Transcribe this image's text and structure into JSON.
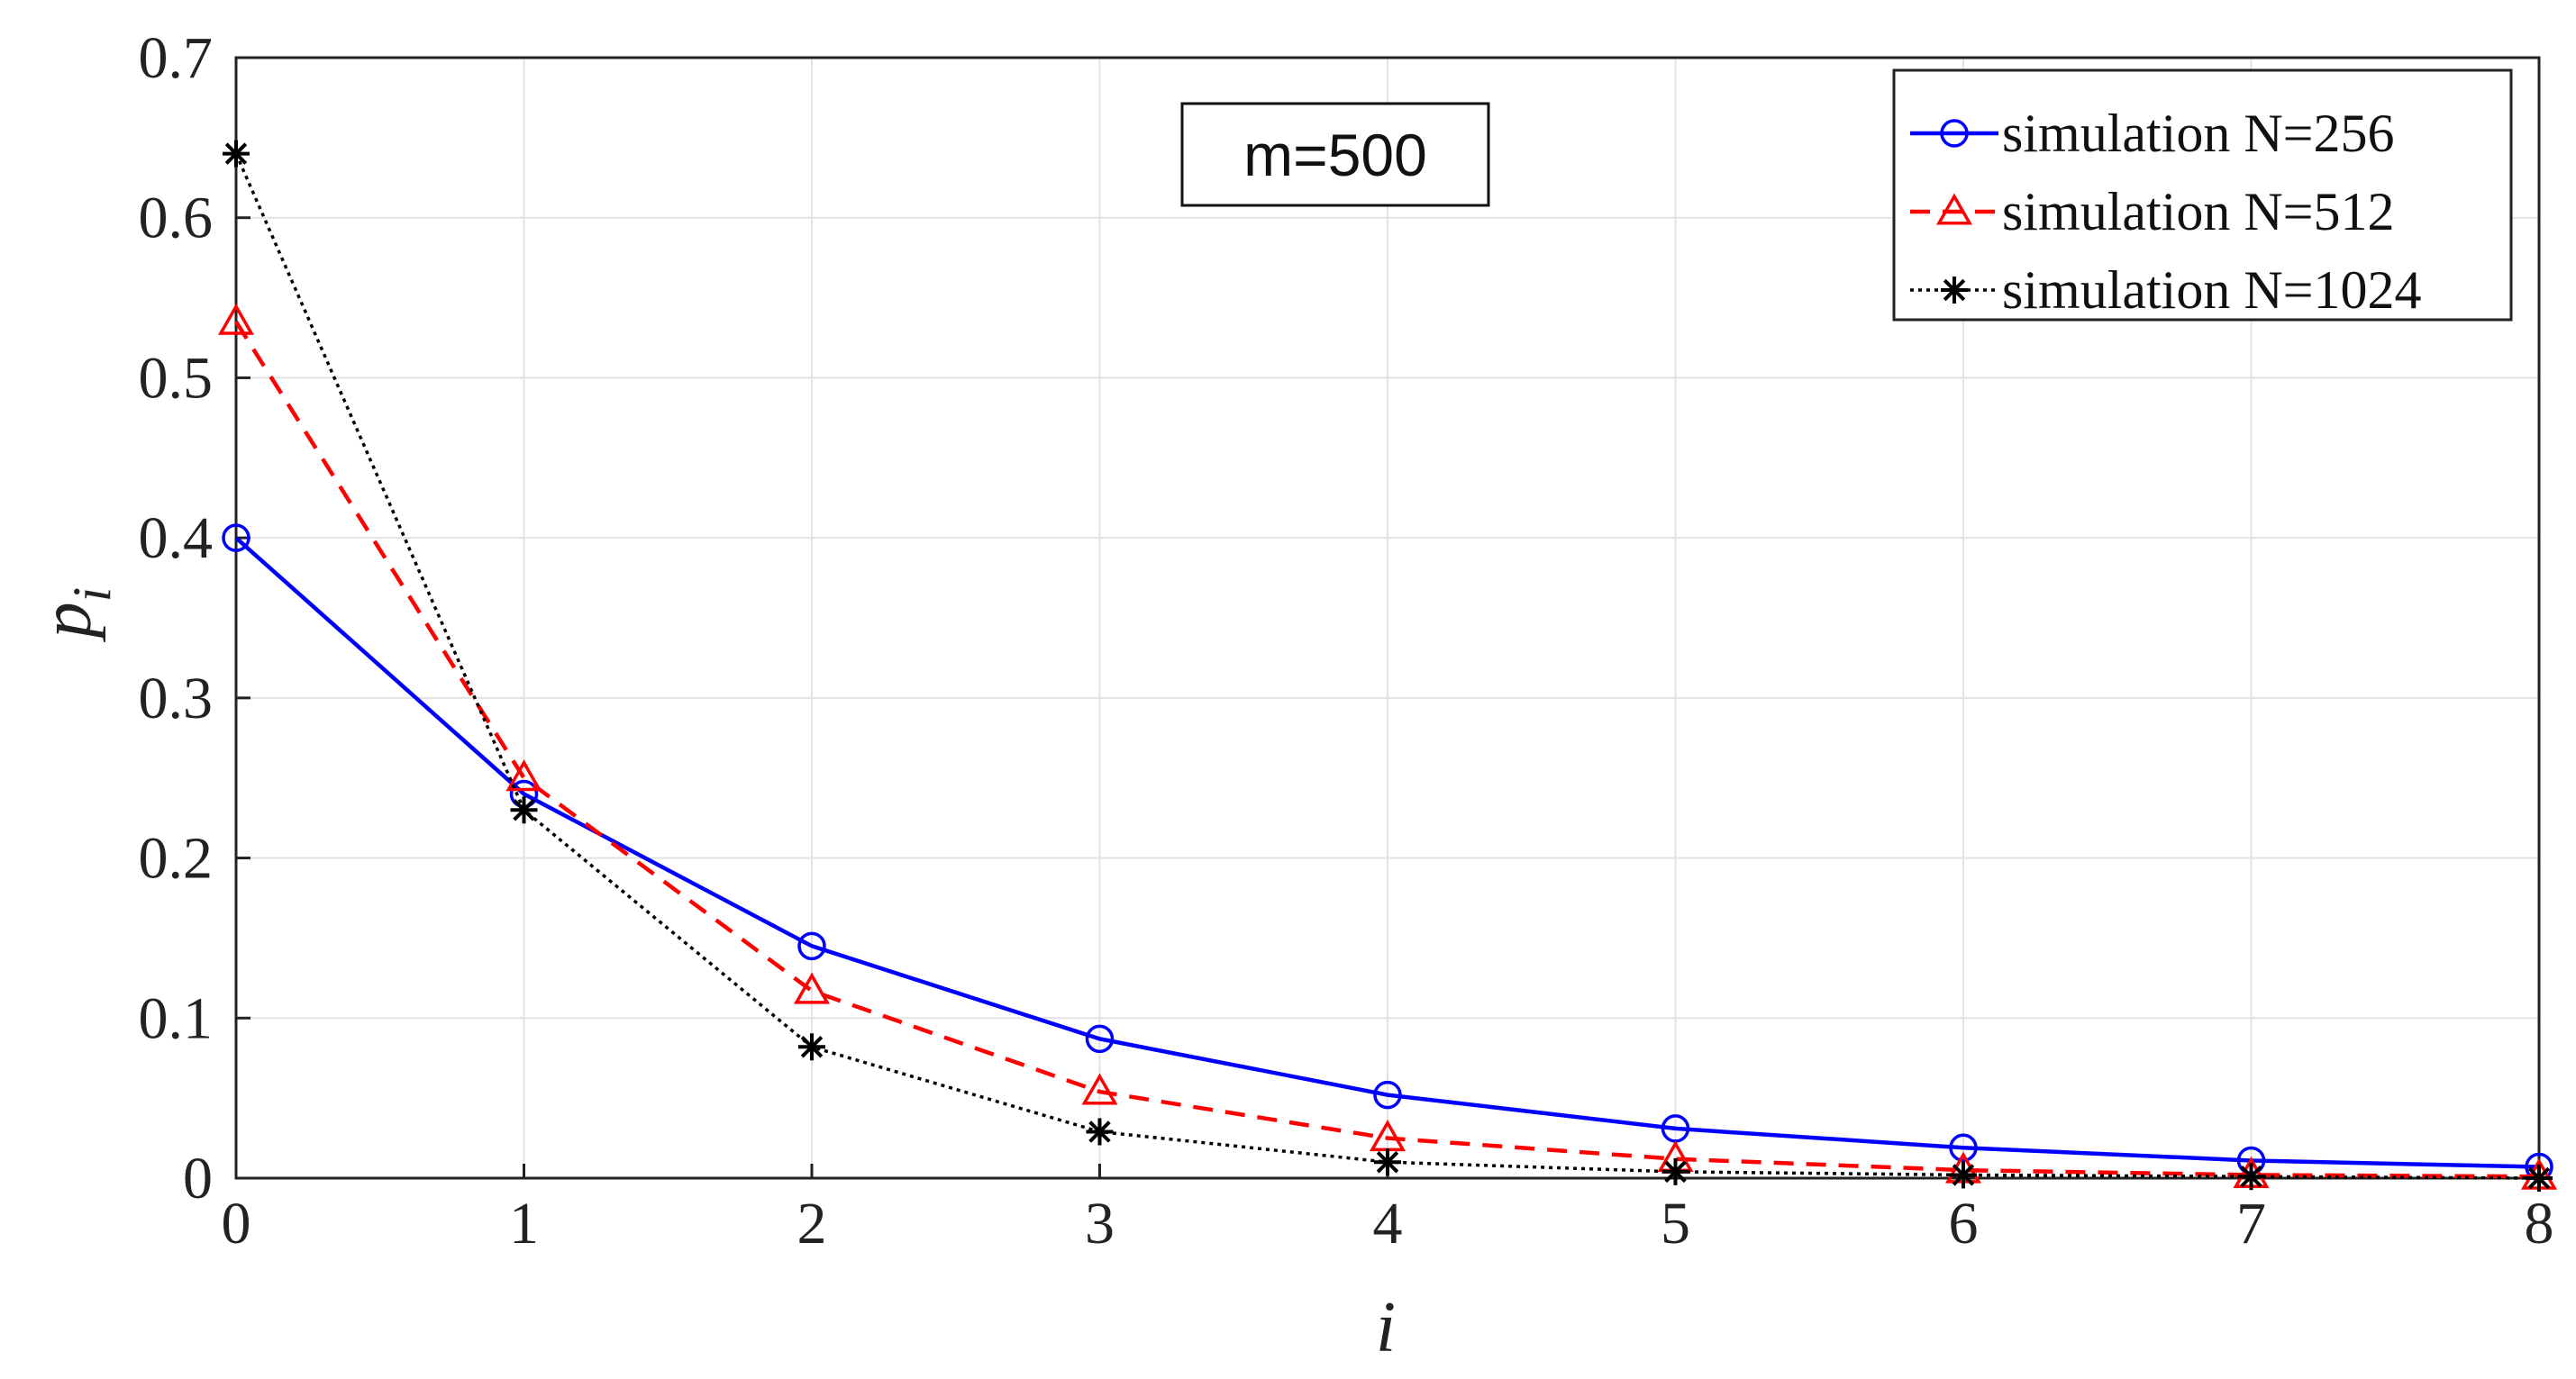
{
  "chart_data": {
    "type": "line",
    "x": [
      0,
      1,
      2,
      3,
      4,
      5,
      6,
      7,
      8
    ],
    "series": [
      {
        "name": "simulation N=256",
        "color": "#0000ff",
        "line_style": "solid",
        "marker": "circle",
        "values": [
          0.4,
          0.24,
          0.145,
          0.087,
          0.052,
          0.031,
          0.019,
          0.011,
          0.007
        ]
      },
      {
        "name": "simulation N=512",
        "color": "#ff0000",
        "line_style": "dashed",
        "marker": "triangle",
        "values": [
          0.535,
          0.25,
          0.117,
          0.054,
          0.025,
          0.012,
          0.005,
          0.002,
          0.001
        ]
      },
      {
        "name": "simulation N=1024",
        "color": "#000000",
        "line_style": "dotted",
        "marker": "asterisk",
        "values": [
          0.64,
          0.23,
          0.082,
          0.029,
          0.01,
          0.004,
          0.002,
          0.001,
          0.0
        ]
      }
    ],
    "xlabel": "i",
    "ylabel": "p_i",
    "ylabel_main": "p",
    "ylabel_sub": "i",
    "xlim": [
      0,
      8
    ],
    "ylim": [
      0,
      0.7
    ],
    "xticks": [
      "0",
      "1",
      "2",
      "3",
      "4",
      "5",
      "6",
      "7",
      "8"
    ],
    "yticks": [
      "0",
      "0.1",
      "0.2",
      "0.3",
      "0.4",
      "0.5",
      "0.6",
      "0.7"
    ],
    "grid": true,
    "legend_position": "top-right",
    "annotation": "m=500"
  }
}
